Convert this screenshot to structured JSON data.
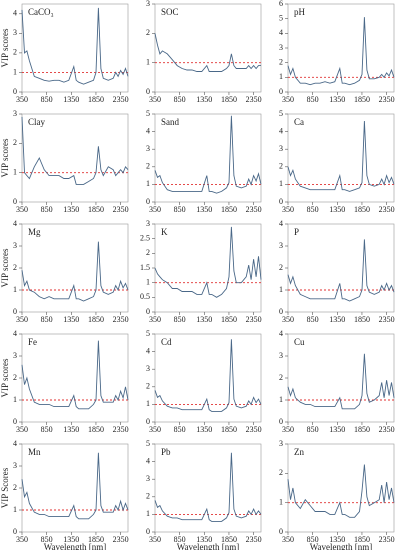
{
  "chart_data": [
    {
      "type": "line",
      "title": "CaCO₃",
      "y_label": "VIP scores",
      "xlim": [
        350,
        2500
      ],
      "xticks": [
        350,
        850,
        1350,
        1850,
        2350
      ],
      "ylim": [
        0,
        4.5
      ],
      "yticks": [
        0,
        1,
        2,
        3,
        4
      ],
      "threshold": 1,
      "threshold_color": "#e03030",
      "color": "#4a6888",
      "x": [
        350,
        400,
        450,
        500,
        600,
        700,
        800,
        900,
        1000,
        1100,
        1200,
        1300,
        1400,
        1450,
        1500,
        1600,
        1700,
        1800,
        1850,
        1900,
        1950,
        2000,
        2100,
        2200,
        2250,
        2300,
        2350,
        2400,
        2450,
        2500
      ],
      "values": [
        4.2,
        2.0,
        2.1,
        1.6,
        0.8,
        0.7,
        0.6,
        0.55,
        0.6,
        0.6,
        0.5,
        0.6,
        1.3,
        0.6,
        0.5,
        0.4,
        0.5,
        0.6,
        1.0,
        4.3,
        1.2,
        0.7,
        0.6,
        0.7,
        1.0,
        0.8,
        1.1,
        0.9,
        1.2,
        0.8
      ]
    },
    {
      "type": "line",
      "title": "SOC",
      "xlim": [
        350,
        2500
      ],
      "xticks": [
        350,
        850,
        1350,
        1850,
        2350
      ],
      "ylim": [
        0,
        3
      ],
      "yticks": [
        0,
        1,
        2,
        3
      ],
      "threshold": 1,
      "threshold_color": "#e03030",
      "color": "#4a6888",
      "x": [
        350,
        400,
        450,
        500,
        600,
        700,
        800,
        900,
        1000,
        1100,
        1200,
        1300,
        1400,
        1450,
        1500,
        1600,
        1700,
        1800,
        1850,
        1900,
        1950,
        2000,
        2100,
        2200,
        2250,
        2300,
        2350,
        2400,
        2450,
        2500
      ],
      "values": [
        2.0,
        1.6,
        1.3,
        1.4,
        1.3,
        1.1,
        0.9,
        0.8,
        0.75,
        0.75,
        0.7,
        0.7,
        0.9,
        0.7,
        0.7,
        0.7,
        0.7,
        0.8,
        0.9,
        1.3,
        0.9,
        0.8,
        0.8,
        0.8,
        0.9,
        0.8,
        0.9,
        0.8,
        0.9,
        0.9
      ]
    },
    {
      "type": "line",
      "title": "pH",
      "xlim": [
        350,
        2500
      ],
      "xticks": [
        350,
        850,
        1350,
        1850,
        2350
      ],
      "ylim": [
        0,
        6
      ],
      "yticks": [
        0,
        1,
        2,
        3,
        4,
        5,
        6
      ],
      "threshold": 1,
      "threshold_color": "#e03030",
      "color": "#4a6888",
      "x": [
        350,
        400,
        450,
        500,
        600,
        700,
        800,
        900,
        1000,
        1100,
        1200,
        1300,
        1400,
        1450,
        1500,
        1600,
        1700,
        1800,
        1850,
        1900,
        1950,
        2000,
        2100,
        2200,
        2250,
        2300,
        2350,
        2400,
        2450,
        2500
      ],
      "values": [
        1.8,
        1.2,
        1.6,
        1.0,
        0.6,
        0.6,
        0.5,
        0.6,
        0.6,
        0.7,
        0.6,
        0.7,
        1.6,
        0.6,
        0.6,
        0.5,
        0.6,
        0.8,
        1.2,
        5.1,
        1.5,
        0.9,
        0.9,
        1.0,
        1.2,
        1.0,
        1.3,
        1.1,
        1.5,
        1.0
      ]
    },
    {
      "type": "line",
      "title": "Clay",
      "y_label": "VIP scores",
      "xlim": [
        350,
        2500
      ],
      "xticks": [
        350,
        850,
        1350,
        1850,
        2350
      ],
      "ylim": [
        0,
        3
      ],
      "yticks": [
        0,
        1,
        2,
        3
      ],
      "threshold": 1,
      "threshold_color": "#e03030",
      "color": "#4a6888",
      "x": [
        350,
        400,
        450,
        500,
        600,
        700,
        800,
        900,
        1000,
        1100,
        1200,
        1300,
        1400,
        1450,
        1500,
        1600,
        1700,
        1800,
        1850,
        1900,
        1950,
        2000,
        2100,
        2200,
        2250,
        2300,
        2350,
        2400,
        2450,
        2500
      ],
      "values": [
        2.9,
        1.0,
        0.9,
        0.8,
        1.2,
        1.5,
        1.1,
        0.9,
        0.9,
        0.9,
        0.8,
        0.8,
        0.9,
        0.6,
        0.6,
        0.6,
        0.7,
        0.8,
        1.0,
        1.9,
        1.1,
        0.9,
        1.2,
        1.1,
        0.9,
        1.0,
        1.1,
        1.0,
        1.2,
        1.1
      ]
    },
    {
      "type": "line",
      "title": "Sand",
      "xlim": [
        350,
        2500
      ],
      "xticks": [
        350,
        850,
        1350,
        1850,
        2350
      ],
      "ylim": [
        0,
        5
      ],
      "yticks": [
        0,
        1,
        2,
        3,
        4,
        5
      ],
      "threshold": 1,
      "threshold_color": "#e03030",
      "color": "#4a6888",
      "x": [
        350,
        400,
        450,
        500,
        600,
        700,
        800,
        900,
        1000,
        1100,
        1200,
        1300,
        1400,
        1450,
        1500,
        1600,
        1700,
        1800,
        1850,
        1900,
        1950,
        2000,
        2100,
        2200,
        2250,
        2300,
        2350,
        2400,
        2450,
        2500
      ],
      "values": [
        1.8,
        1.4,
        1.5,
        1.1,
        0.7,
        0.6,
        0.6,
        0.6,
        0.6,
        0.6,
        0.6,
        0.6,
        1.5,
        0.6,
        0.6,
        0.5,
        0.6,
        0.8,
        1.1,
        4.9,
        1.5,
        0.9,
        0.8,
        0.9,
        1.3,
        1.0,
        1.5,
        1.2,
        1.6,
        1.0
      ]
    },
    {
      "type": "line",
      "title": "Ca",
      "xlim": [
        350,
        2500
      ],
      "xticks": [
        350,
        850,
        1350,
        1850,
        2350
      ],
      "ylim": [
        0,
        5
      ],
      "yticks": [
        0,
        1,
        2,
        3,
        4,
        5
      ],
      "threshold": 1,
      "threshold_color": "#e03030",
      "color": "#4a6888",
      "x": [
        350,
        400,
        450,
        500,
        600,
        700,
        800,
        900,
        1000,
        1100,
        1200,
        1300,
        1400,
        1450,
        1500,
        1600,
        1700,
        1800,
        1850,
        1900,
        1950,
        2000,
        2100,
        2200,
        2250,
        2300,
        2350,
        2400,
        2450,
        2500
      ],
      "values": [
        2.0,
        1.5,
        1.8,
        1.3,
        0.9,
        0.8,
        0.7,
        0.7,
        0.7,
        0.7,
        0.7,
        0.7,
        1.5,
        0.7,
        0.7,
        0.6,
        0.7,
        0.8,
        1.1,
        4.6,
        1.5,
        1.0,
        0.9,
        1.0,
        1.3,
        1.0,
        1.5,
        1.1,
        1.4,
        1.0
      ]
    },
    {
      "type": "line",
      "title": "Mg",
      "y_label": "VIP scores",
      "xlim": [
        350,
        2500
      ],
      "xticks": [
        350,
        850,
        1350,
        1850,
        2350
      ],
      "ylim": [
        0,
        4
      ],
      "yticks": [
        0,
        1,
        2,
        3,
        4
      ],
      "threshold": 1,
      "threshold_color": "#e03030",
      "color": "#4a6888",
      "x": [
        350,
        400,
        450,
        500,
        600,
        700,
        800,
        900,
        1000,
        1100,
        1200,
        1300,
        1400,
        1450,
        1500,
        1600,
        1700,
        1800,
        1850,
        1900,
        1950,
        2000,
        2100,
        2200,
        2250,
        2300,
        2350,
        2400,
        2450,
        2500
      ],
      "values": [
        1.9,
        1.2,
        1.4,
        1.0,
        0.9,
        0.7,
        0.6,
        0.7,
        0.6,
        0.6,
        0.6,
        0.6,
        1.2,
        0.6,
        0.6,
        0.5,
        0.6,
        0.7,
        1.0,
        3.2,
        1.2,
        0.9,
        0.8,
        0.9,
        1.2,
        1.0,
        1.4,
        1.1,
        1.3,
        1.0
      ]
    },
    {
      "type": "line",
      "title": "K",
      "xlim": [
        350,
        2500
      ],
      "xticks": [
        350,
        850,
        1350,
        1850,
        2350
      ],
      "ylim": [
        0,
        3
      ],
      "yticks": [
        0,
        0.5,
        1,
        1.5,
        2,
        2.5,
        3
      ],
      "threshold": 1,
      "threshold_color": "#e03030",
      "color": "#4a6888",
      "x": [
        350,
        400,
        450,
        500,
        600,
        700,
        800,
        900,
        1000,
        1100,
        1200,
        1300,
        1400,
        1450,
        1500,
        1600,
        1700,
        1800,
        1850,
        1900,
        1950,
        2000,
        2100,
        2200,
        2250,
        2300,
        2350,
        2400,
        2450,
        2500
      ],
      "values": [
        1.5,
        1.3,
        1.2,
        1.1,
        1.0,
        0.8,
        0.8,
        0.7,
        0.7,
        0.7,
        0.6,
        0.6,
        1.0,
        0.6,
        0.6,
        0.5,
        0.6,
        0.8,
        1.2,
        2.9,
        1.4,
        1.0,
        1.0,
        1.2,
        1.6,
        1.1,
        1.8,
        1.2,
        1.9,
        1.1
      ]
    },
    {
      "type": "line",
      "title": "P",
      "xlim": [
        350,
        2500
      ],
      "xticks": [
        350,
        850,
        1350,
        1850,
        2350
      ],
      "ylim": [
        0,
        4
      ],
      "yticks": [
        0,
        1,
        2,
        3,
        4
      ],
      "threshold": 1,
      "threshold_color": "#e03030",
      "color": "#4a6888",
      "x": [
        350,
        400,
        450,
        500,
        600,
        700,
        800,
        900,
        1000,
        1100,
        1200,
        1300,
        1400,
        1450,
        1500,
        1600,
        1700,
        1800,
        1850,
        1900,
        1950,
        2000,
        2100,
        2200,
        2250,
        2300,
        2350,
        2400,
        2450,
        2500
      ],
      "values": [
        1.7,
        1.3,
        1.6,
        1.2,
        0.8,
        0.7,
        0.6,
        0.6,
        0.6,
        0.6,
        0.6,
        0.6,
        1.3,
        0.6,
        0.6,
        0.5,
        0.6,
        0.7,
        1.0,
        3.3,
        1.2,
        0.9,
        0.8,
        0.9,
        1.2,
        1.0,
        1.3,
        1.0,
        1.2,
        0.9
      ]
    },
    {
      "type": "line",
      "title": "Fe",
      "y_label": "VIP scores",
      "xlim": [
        350,
        2500
      ],
      "xticks": [
        350,
        850,
        1350,
        1850,
        2350
      ],
      "ylim": [
        0,
        4
      ],
      "yticks": [
        0,
        1,
        2,
        3,
        4
      ],
      "threshold": 1,
      "threshold_color": "#e03030",
      "color": "#4a6888",
      "x": [
        350,
        400,
        450,
        500,
        600,
        700,
        800,
        900,
        1000,
        1100,
        1200,
        1300,
        1400,
        1450,
        1500,
        1600,
        1700,
        1800,
        1850,
        1900,
        1950,
        2000,
        2100,
        2200,
        2250,
        2300,
        2350,
        2400,
        2450,
        2500
      ],
      "values": [
        2.6,
        1.7,
        2.0,
        1.5,
        0.9,
        0.8,
        0.8,
        0.8,
        0.7,
        0.7,
        0.7,
        0.7,
        1.2,
        0.7,
        0.6,
        0.6,
        0.6,
        0.8,
        1.0,
        3.7,
        1.2,
        0.9,
        0.9,
        0.9,
        1.2,
        1.0,
        1.4,
        1.1,
        1.6,
        1.0
      ]
    },
    {
      "type": "line",
      "title": "Cd",
      "xlim": [
        350,
        2500
      ],
      "xticks": [
        350,
        850,
        1350,
        1850,
        2350
      ],
      "ylim": [
        0,
        5
      ],
      "yticks": [
        0,
        1,
        2,
        3,
        4,
        5
      ],
      "threshold": 1,
      "threshold_color": "#e03030",
      "color": "#4a6888",
      "x": [
        350,
        400,
        450,
        500,
        600,
        700,
        800,
        900,
        1000,
        1100,
        1200,
        1300,
        1400,
        1450,
        1500,
        1600,
        1700,
        1800,
        1850,
        1900,
        1950,
        2000,
        2100,
        2200,
        2250,
        2300,
        2350,
        2400,
        2450,
        2500
      ],
      "values": [
        1.8,
        1.4,
        1.5,
        1.2,
        0.9,
        0.8,
        0.8,
        0.7,
        0.7,
        0.7,
        0.7,
        0.7,
        1.3,
        0.7,
        0.6,
        0.6,
        0.6,
        0.8,
        1.1,
        4.7,
        1.3,
        0.9,
        0.8,
        0.9,
        1.2,
        1.0,
        1.4,
        1.1,
        1.3,
        1.0
      ]
    },
    {
      "type": "line",
      "title": "Cu",
      "xlim": [
        350,
        2500
      ],
      "xticks": [
        350,
        850,
        1350,
        1850,
        2350
      ],
      "ylim": [
        0,
        4
      ],
      "yticks": [
        0,
        1,
        2,
        3,
        4
      ],
      "threshold": 1,
      "threshold_color": "#e03030",
      "color": "#4a6888",
      "x": [
        350,
        400,
        450,
        500,
        600,
        700,
        800,
        900,
        1000,
        1100,
        1200,
        1300,
        1400,
        1450,
        1500,
        1600,
        1700,
        1800,
        1850,
        1900,
        1950,
        2000,
        2100,
        2200,
        2250,
        2300,
        2350,
        2400,
        2450,
        2500
      ],
      "values": [
        1.6,
        1.2,
        1.5,
        1.1,
        0.9,
        0.8,
        0.8,
        0.7,
        0.7,
        0.7,
        0.7,
        0.7,
        1.1,
        0.6,
        0.6,
        0.6,
        0.6,
        0.8,
        1.2,
        3.1,
        1.3,
        0.9,
        1.0,
        1.2,
        1.8,
        1.1,
        1.9,
        1.2,
        1.8,
        1.1
      ]
    },
    {
      "type": "line",
      "title": "Mn",
      "y_label": "VIP Scores",
      "x_label": "Wavelength [nm]",
      "xlim": [
        350,
        2500
      ],
      "xticks": [
        350,
        850,
        1350,
        1850,
        2350
      ],
      "ylim": [
        0,
        4
      ],
      "yticks": [
        0,
        1,
        2,
        3,
        4
      ],
      "threshold": 1,
      "threshold_color": "#e03030",
      "color": "#4a6888",
      "x": [
        350,
        400,
        450,
        500,
        600,
        700,
        800,
        900,
        1000,
        1100,
        1200,
        1300,
        1400,
        1450,
        1500,
        1600,
        1700,
        1800,
        1850,
        1900,
        1950,
        2000,
        2100,
        2200,
        2250,
        2300,
        2350,
        2400,
        2450,
        2500
      ],
      "values": [
        2.4,
        1.6,
        1.8,
        1.3,
        0.9,
        0.8,
        0.8,
        0.7,
        0.7,
        0.7,
        0.7,
        0.7,
        1.2,
        0.7,
        0.6,
        0.6,
        0.6,
        0.8,
        1.0,
        3.6,
        1.2,
        0.9,
        0.9,
        0.9,
        1.2,
        1.0,
        1.4,
        1.0,
        1.3,
        1.0
      ]
    },
    {
      "type": "line",
      "title": "Pb",
      "x_label": "Wavelength [nm]",
      "xlim": [
        350,
        2500
      ],
      "xticks": [
        350,
        850,
        1350,
        1850,
        2350
      ],
      "ylim": [
        0,
        5
      ],
      "yticks": [
        0,
        1,
        2,
        3,
        4,
        5
      ],
      "threshold": 1,
      "threshold_color": "#e03030",
      "color": "#4a6888",
      "x": [
        350,
        400,
        450,
        500,
        600,
        700,
        800,
        900,
        1000,
        1100,
        1200,
        1300,
        1400,
        1450,
        1500,
        1600,
        1700,
        1800,
        1850,
        1900,
        1950,
        2000,
        2100,
        2200,
        2250,
        2300,
        2350,
        2400,
        2450,
        2500
      ],
      "values": [
        1.8,
        1.4,
        1.5,
        1.2,
        0.9,
        0.8,
        0.8,
        0.7,
        0.7,
        0.7,
        0.7,
        0.7,
        1.3,
        0.7,
        0.6,
        0.6,
        0.6,
        0.8,
        1.1,
        4.5,
        1.3,
        0.9,
        0.8,
        0.9,
        1.2,
        1.0,
        1.3,
        1.0,
        1.2,
        1.0
      ]
    },
    {
      "type": "line",
      "title": "Zn",
      "x_label": "Wavelength [nm]",
      "xlim": [
        350,
        2500
      ],
      "xticks": [
        350,
        850,
        1350,
        1850,
        2350
      ],
      "ylim": [
        0,
        3
      ],
      "yticks": [
        0,
        1,
        2,
        3
      ],
      "threshold": 1,
      "threshold_color": "#e03030",
      "color": "#4a6888",
      "x": [
        350,
        400,
        450,
        500,
        600,
        700,
        800,
        900,
        1000,
        1100,
        1200,
        1300,
        1400,
        1450,
        1500,
        1600,
        1700,
        1800,
        1850,
        1900,
        1950,
        2000,
        2100,
        2200,
        2250,
        2300,
        2350,
        2400,
        2450,
        2500
      ],
      "values": [
        1.8,
        1.1,
        1.5,
        1.0,
        0.8,
        1.1,
        0.9,
        0.7,
        0.7,
        0.7,
        0.6,
        0.6,
        1.0,
        0.6,
        0.6,
        0.5,
        0.5,
        0.7,
        1.4,
        2.3,
        1.2,
        0.9,
        1.0,
        1.1,
        1.6,
        1.0,
        1.7,
        1.1,
        1.5,
        1.0
      ]
    }
  ]
}
